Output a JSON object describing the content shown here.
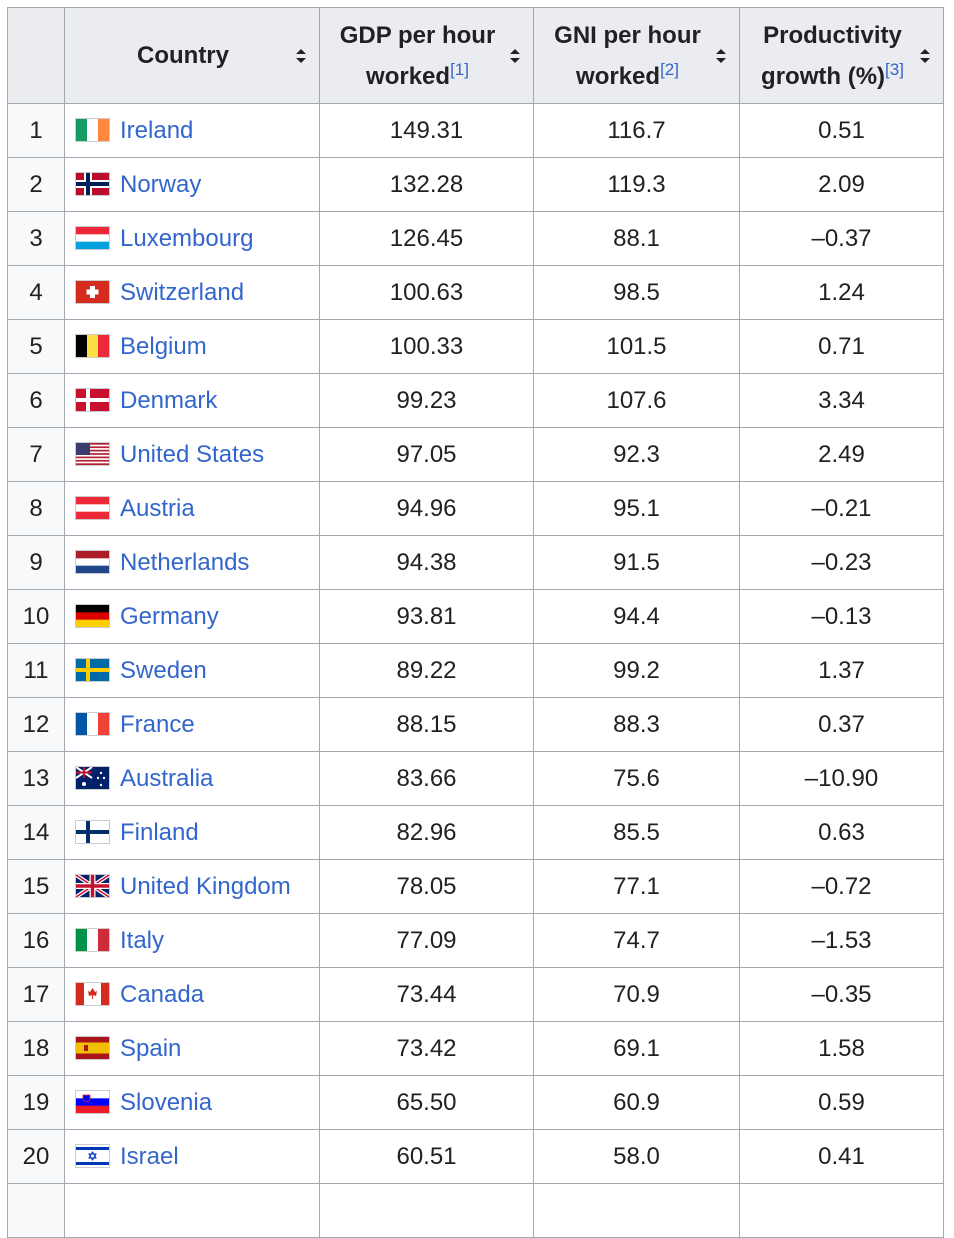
{
  "table": {
    "header": [
      "",
      "Country",
      {
        "text": "GDP per hour worked",
        "ref": "[1]"
      },
      {
        "text": "GNI per hour worked",
        "ref": "[2]"
      },
      {
        "text": "Productivity growth (%)",
        "ref": "[3]"
      }
    ],
    "rows": [
      [
        "1",
        "Ireland",
        "149.31",
        "116.7",
        "0.51"
      ],
      [
        "2",
        "Norway",
        "132.28",
        "119.3",
        "2.09"
      ],
      [
        "3",
        "Luxembourg",
        "126.45",
        "88.1",
        "–0.37"
      ],
      [
        "4",
        "Switzerland",
        "100.63",
        "98.5",
        "1.24"
      ],
      [
        "5",
        "Belgium",
        "100.33",
        "101.5",
        "0.71"
      ],
      [
        "6",
        "Denmark",
        "99.23",
        "107.6",
        "3.34"
      ],
      [
        "7",
        "United States",
        "97.05",
        "92.3",
        "2.49"
      ],
      [
        "8",
        "Austria",
        "94.96",
        "95.1",
        "–0.21"
      ],
      [
        "9",
        "Netherlands",
        "94.38",
        "91.5",
        "–0.23"
      ],
      [
        "10",
        "Germany",
        "93.81",
        "94.4",
        "–0.13"
      ],
      [
        "11",
        "Sweden",
        "89.22",
        "99.2",
        "1.37"
      ],
      [
        "12",
        "France",
        "88.15",
        "88.3",
        "0.37"
      ],
      [
        "13",
        "Australia",
        "83.66",
        "75.6",
        "–10.90"
      ],
      [
        "14",
        "Finland",
        "82.96",
        "85.5",
        "0.63"
      ],
      [
        "15",
        "United Kingdom",
        "78.05",
        "77.1",
        "–0.72"
      ],
      [
        "16",
        "Italy",
        "77.09",
        "74.7",
        "–1.53"
      ],
      [
        "17",
        "Canada",
        "73.44",
        "70.9",
        "–0.35"
      ],
      [
        "18",
        "Spain",
        "73.42",
        "69.1",
        "1.58"
      ],
      [
        "19",
        "Slovenia",
        "65.50",
        "60.9",
        "0.59"
      ],
      [
        "20",
        "Israel",
        "60.51",
        "58.0",
        "0.41"
      ]
    ]
  }
}
